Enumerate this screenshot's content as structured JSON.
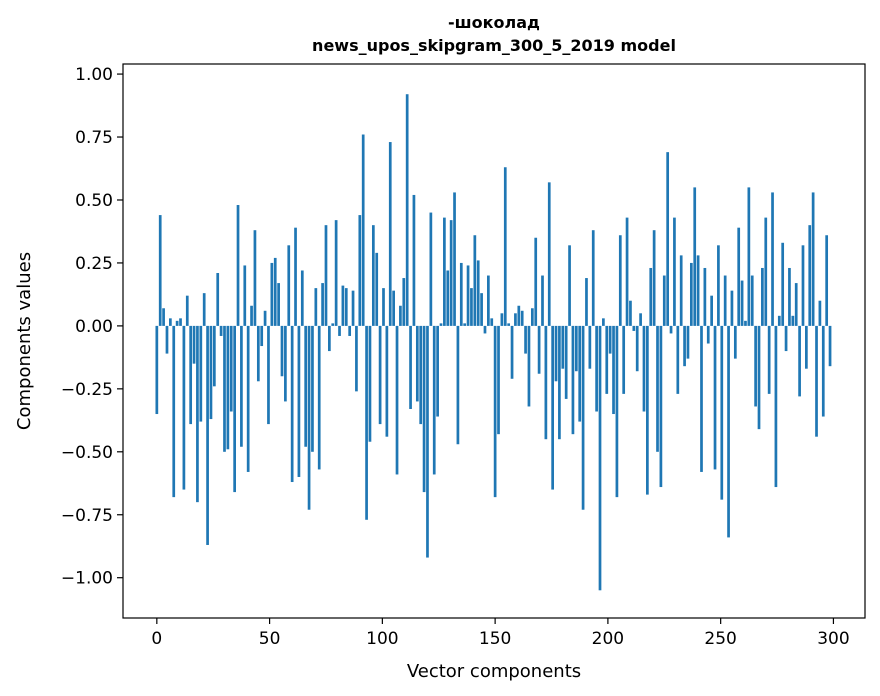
{
  "chart_data": {
    "type": "bar",
    "title_line1": "-шоколад",
    "title_line2": "news_upos_skipgram_300_5_2019 model",
    "xlabel": "Vector components",
    "ylabel": "Components values",
    "xlim": [
      -15,
      314
    ],
    "ylim": [
      -1.16,
      1.04
    ],
    "xticks": [
      0,
      50,
      100,
      150,
      200,
      250,
      300
    ],
    "yticks": [
      -1.0,
      -0.75,
      -0.5,
      -0.25,
      0.0,
      0.25,
      0.5,
      0.75,
      1.0
    ],
    "ytick_labels": [
      "−1.00",
      "−0.75",
      "−0.50",
      "−0.25",
      "0.00",
      "0.25",
      "0.50",
      "0.75",
      "1.00"
    ],
    "bar_color": "#1f77b4",
    "values": [
      -0.35,
      0.44,
      0.07,
      -0.11,
      0.03,
      -0.68,
      0.02,
      0.03,
      -0.65,
      0.12,
      -0.39,
      -0.15,
      -0.7,
      -0.38,
      0.13,
      -0.87,
      -0.37,
      -0.24,
      0.21,
      -0.04,
      -0.5,
      -0.49,
      -0.34,
      -0.66,
      0.48,
      -0.48,
      0.24,
      -0.58,
      0.08,
      0.38,
      -0.22,
      -0.08,
      0.06,
      -0.39,
      0.25,
      0.27,
      0.17,
      -0.2,
      -0.3,
      0.32,
      -0.62,
      0.39,
      -0.6,
      0.22,
      -0.48,
      -0.73,
      -0.5,
      0.15,
      -0.57,
      0.17,
      0.4,
      -0.1,
      0.01,
      0.42,
      -0.04,
      0.16,
      0.15,
      -0.04,
      0.14,
      -0.26,
      0.44,
      0.76,
      -0.77,
      -0.46,
      0.4,
      0.29,
      -0.39,
      0.15,
      -0.44,
      0.73,
      0.14,
      -0.59,
      0.08,
      0.19,
      0.92,
      -0.33,
      0.52,
      -0.3,
      -0.39,
      -0.66,
      -0.92,
      0.45,
      -0.59,
      -0.36,
      0.01,
      0.43,
      0.22,
      0.42,
      0.53,
      -0.47,
      0.25,
      0.01,
      0.24,
      0.15,
      0.36,
      0.26,
      0.13,
      -0.03,
      0.2,
      0.03,
      -0.68,
      -0.43,
      0.05,
      0.63,
      0.01,
      -0.21,
      0.05,
      0.08,
      0.06,
      -0.11,
      -0.32,
      0.07,
      0.35,
      -0.19,
      0.2,
      -0.45,
      0.57,
      -0.65,
      -0.22,
      -0.45,
      -0.17,
      -0.29,
      0.32,
      -0.43,
      -0.18,
      -0.38,
      -0.73,
      0.19,
      -0.17,
      0.38,
      -0.34,
      -1.05,
      0.03,
      -0.27,
      -0.11,
      -0.35,
      -0.68,
      0.36,
      -0.27,
      0.43,
      0.1,
      -0.02,
      -0.18,
      0.05,
      -0.34,
      -0.67,
      0.23,
      0.38,
      -0.5,
      -0.64,
      0.2,
      0.69,
      -0.03,
      0.43,
      -0.27,
      0.28,
      -0.16,
      -0.13,
      0.25,
      0.55,
      0.28,
      -0.58,
      0.23,
      -0.07,
      0.12,
      -0.57,
      0.32,
      -0.69,
      0.2,
      -0.84,
      0.14,
      -0.13,
      0.39,
      0.18,
      0.02,
      0.55,
      0.2,
      -0.32,
      -0.41,
      0.23,
      0.43,
      -0.27,
      0.53,
      -0.64,
      0.04,
      0.33,
      -0.1,
      0.23,
      0.04,
      0.17,
      -0.28,
      0.32,
      -0.17,
      0.4,
      0.53,
      -0.44,
      0.1,
      -0.36,
      0.36,
      -0.16
    ]
  }
}
